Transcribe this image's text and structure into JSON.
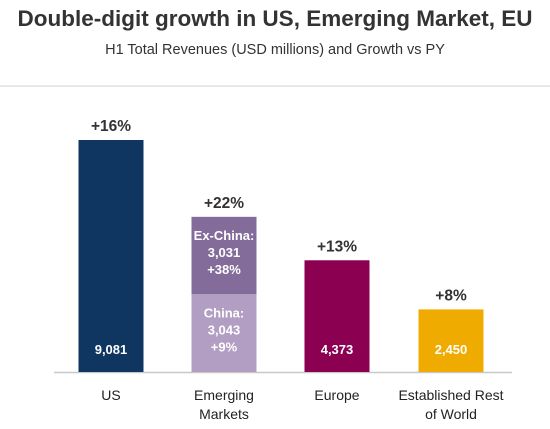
{
  "title": "Double-digit growth in US, Emerging Market, EU",
  "subtitle": "H1 Total Revenues (USD millions) and Growth vs PY",
  "chart_data": {
    "type": "bar",
    "stacked": true,
    "title": "Double-digit growth in US, Emerging Market, EU",
    "subtitle": "H1 Total Revenues (USD millions) and Growth vs PY",
    "categories": [
      {
        "label_lines": [
          "US"
        ],
        "growth": "+16%"
      },
      {
        "label_lines": [
          "Emerging",
          "Markets"
        ],
        "growth": "+22%"
      },
      {
        "label_lines": [
          "Europe"
        ],
        "growth": "+13%"
      },
      {
        "label_lines": [
          "Established Rest",
          "of World"
        ],
        "growth": "+8%"
      }
    ],
    "bars": [
      {
        "category": "US",
        "segments": [
          {
            "value": 9081,
            "label_lines": [
              "9,081"
            ],
            "color": "#0e3660",
            "label_position": "bottom"
          }
        ]
      },
      {
        "category": "Emerging Markets",
        "segments": [
          {
            "name": "China",
            "value": 3043,
            "label_lines": [
              "China:",
              "3,043",
              "+9%"
            ],
            "color": "#b39ec3",
            "label_position": "top"
          },
          {
            "name": "Ex-China",
            "value": 3031,
            "label_lines": [
              "Ex-China:",
              "3,031",
              "+38%"
            ],
            "color": "#836c9a",
            "label_position": "top"
          }
        ]
      },
      {
        "category": "Europe",
        "segments": [
          {
            "value": 4373,
            "label_lines": [
              "4,373"
            ],
            "color": "#8b0051",
            "label_position": "bottom"
          }
        ]
      },
      {
        "category": "Established Rest of World",
        "segments": [
          {
            "value": 2450,
            "label_lines": [
              "2,450"
            ],
            "color": "#f0ab00",
            "label_position": "bottom"
          }
        ]
      }
    ],
    "growth_label_color": "#333333",
    "value_label_color": "#ffffff",
    "axis_color": "#c8c8c8",
    "ylim": [
      0,
      9081
    ],
    "grid": false,
    "legend": "none",
    "xlabel": "",
    "ylabel": ""
  }
}
